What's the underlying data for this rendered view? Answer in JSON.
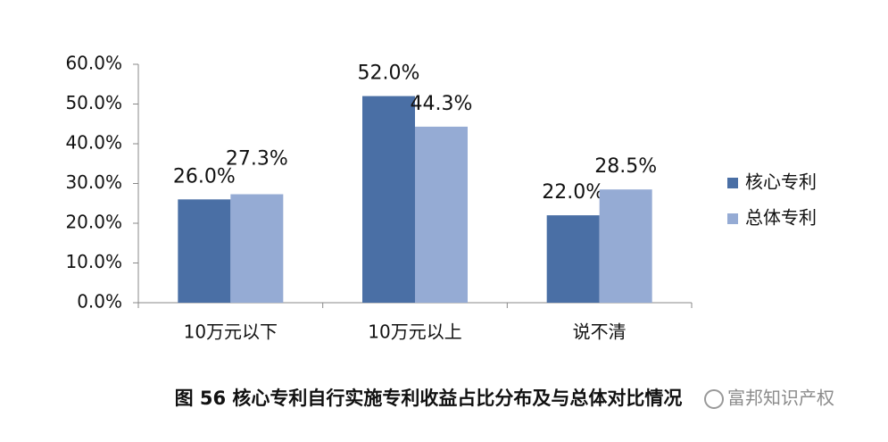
{
  "chart_data": {
    "type": "bar",
    "categories": [
      "10万元以下",
      "10万元以上",
      "说不清"
    ],
    "series": [
      {
        "name": "核心专利",
        "color": "#4a6fa5",
        "values": [
          26.0,
          52.0,
          22.0
        ],
        "value_labels": [
          "26.0%",
          "52.0%",
          "22.0%"
        ]
      },
      {
        "name": "总体专利",
        "color": "#95abd4",
        "values": [
          27.3,
          44.3,
          28.5
        ],
        "value_labels": [
          "27.3%",
          "44.3%",
          "28.5%"
        ]
      }
    ],
    "ylim": [
      0,
      60
    ],
    "yticks": [
      {
        "value": 0,
        "label": "0.0%"
      },
      {
        "value": 10,
        "label": "10.0%"
      },
      {
        "value": 20,
        "label": "20.0%"
      },
      {
        "value": 30,
        "label": "30.0%"
      },
      {
        "value": 40,
        "label": "40.0%"
      },
      {
        "value": 50,
        "label": "50.0%"
      },
      {
        "value": 60,
        "label": "60.0%"
      }
    ],
    "grid": false,
    "legend": "right",
    "caption": "图 56 核心专利自行实施专利收益占比分布及与总体对比情况",
    "watermark": "富邦知识产权"
  }
}
